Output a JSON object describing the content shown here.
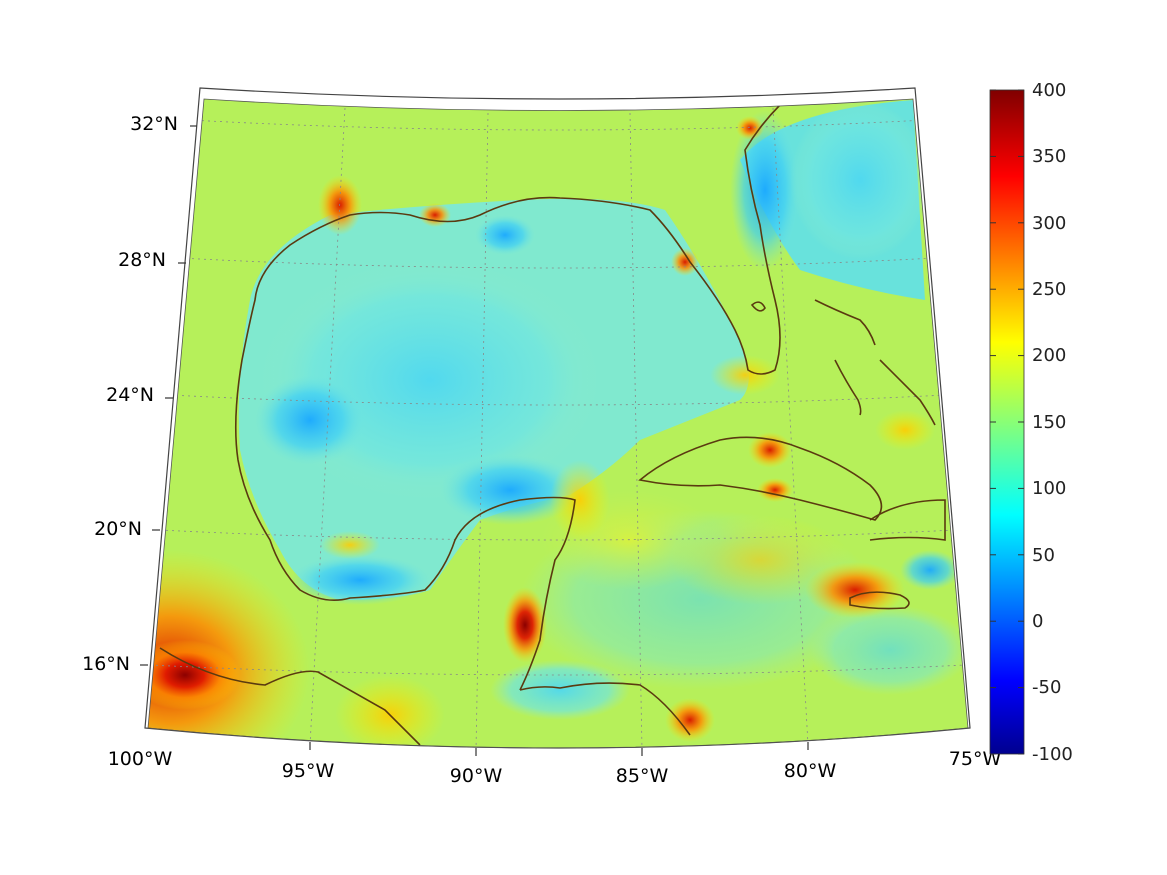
{
  "map": {
    "lat_labels": [
      "32°N",
      "28°N",
      "24°N",
      "20°N",
      "16°N"
    ],
    "lon_labels": [
      "100°W",
      "95°W",
      "90°W",
      "85°W",
      "80°W",
      "75°W"
    ],
    "colorbar": {
      "ticks": [
        "400",
        "350",
        "300",
        "250",
        "200",
        "150",
        "100",
        "50",
        "0",
        "-50",
        "-100"
      ],
      "min": -100,
      "max": 400,
      "colormap": "jet"
    },
    "colors": {
      "coastline": "#5a3a10",
      "frame": "#444444",
      "grid": "#888888"
    }
  }
}
